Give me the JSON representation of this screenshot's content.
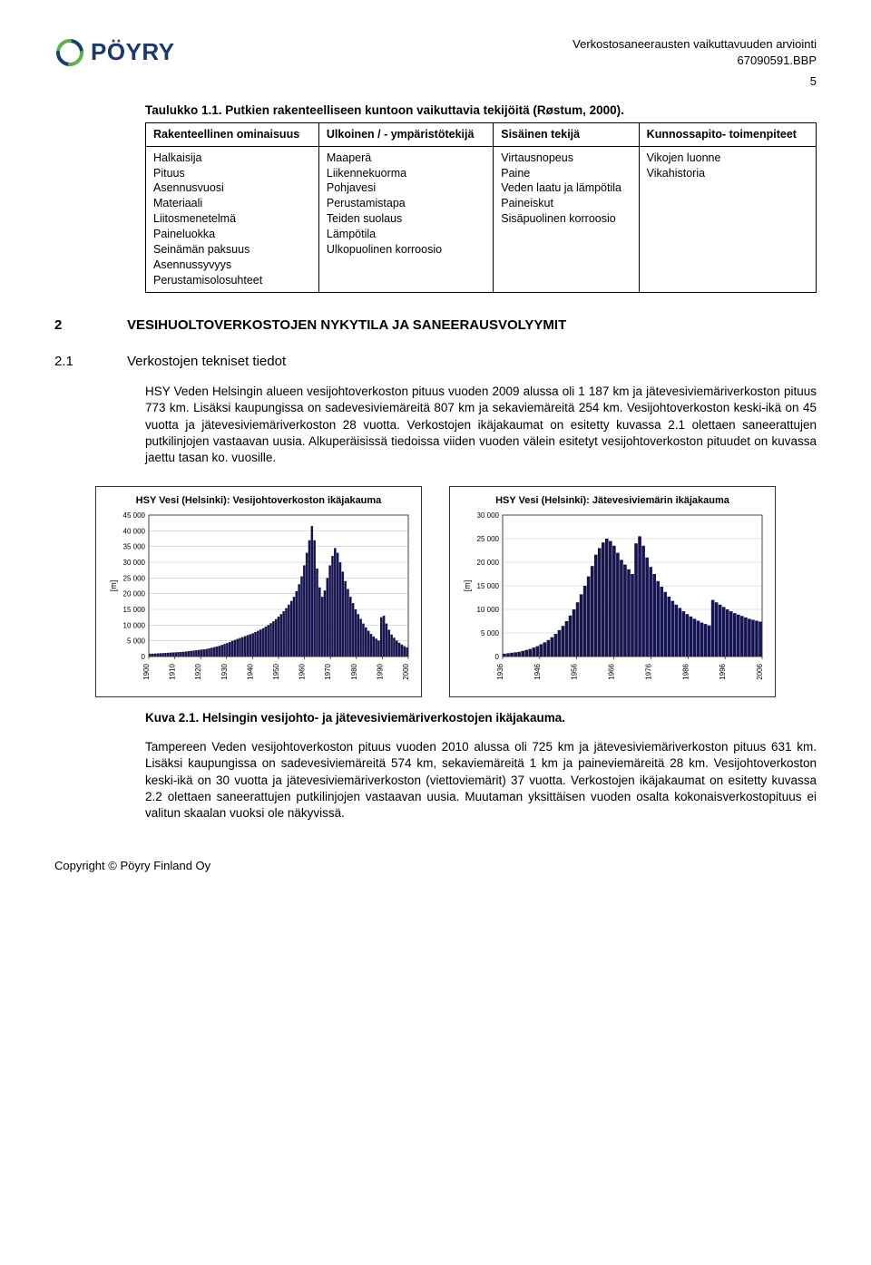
{
  "header": {
    "logo_text": "PÖYRY",
    "doc_title": "Verkostosaneerausten vaikuttavuuden arviointi",
    "doc_number": "67090591.BBP",
    "page_number": "5"
  },
  "table1": {
    "caption": "Taulukko 1.1. Putkien rakenteelliseen kuntoon vaikuttavia tekijöitä (Røstum, 2000).",
    "headers": [
      "Rakenteellinen ominaisuus",
      "Ulkoinen / - ympäristötekijä",
      "Sisäinen tekijä",
      "Kunnossapito- toimenpiteet"
    ],
    "cols": [
      [
        "Halkaisija",
        "Pituus",
        "Asennusvuosi",
        "Materiaali",
        "Liitosmenetelmä",
        "Paineluokka",
        "Seinämän paksuus",
        "Asennussyvyys",
        "Perustamisolosuhteet"
      ],
      [
        "Maaperä",
        "Liikennekuorma",
        "Pohjavesi",
        "Perustamistapa",
        "Teiden suolaus",
        "Lämpötila",
        "Ulkopuolinen korroosio"
      ],
      [
        "Virtausnopeus",
        "Paine",
        "Veden laatu ja lämpötila",
        "Paineiskut",
        "Sisäpuolinen korroosio"
      ],
      [
        "Vikojen luonne",
        "Vikahistoria"
      ]
    ]
  },
  "section2": {
    "num": "2",
    "title": "VESIHUOLTOVERKOSTOJEN NYKYTILA JA SANEERAUSVOLYYMIT"
  },
  "section21": {
    "num": "2.1",
    "title": "Verkostojen tekniset tiedot"
  },
  "para1": "HSY Veden Helsingin alueen vesijohtoverkoston pituus vuoden 2009 alussa oli 1 187 km ja jätevesiviemäriverkoston pituus 773 km. Lisäksi kaupungissa on sadevesiviemäreitä 807 km ja sekaviemäreitä 254 km. Vesijohtoverkoston keski-ikä on 45 vuotta ja jätevesiviemäriverkoston 28 vuotta. Verkostojen ikäjakaumat on esitetty kuvassa 2.1 olettaen saneerattujen putkilinjojen vastaavan uusia. Alkuperäisissä tiedoissa viiden vuoden välein esitetyt vesijohtoverkoston pituudet on kuvassa jaettu tasan ko. vuosille.",
  "chart_left": {
    "type": "bar",
    "title": "HSY Vesi (Helsinki): Vesijohtoverkoston ikäjakauma",
    "ylabel": "[m]",
    "ylim": [
      0,
      45000
    ],
    "ytick_step": 5000,
    "yticks": [
      "0",
      "5 000",
      "10 000",
      "15 000",
      "20 000",
      "25 000",
      "30 000",
      "35 000",
      "40 000",
      "45 000"
    ],
    "xticks": [
      "1900",
      "1910",
      "1920",
      "1930",
      "1940",
      "1950",
      "1960",
      "1970",
      "1980",
      "1990",
      "2000"
    ],
    "bar_color": "#17154f",
    "grid_color": "#c6c6c6",
    "background_color": "#ffffff",
    "border_color": "#333333",
    "values": [
      900,
      900,
      950,
      1000,
      1050,
      1100,
      1150,
      1200,
      1250,
      1300,
      1350,
      1400,
      1450,
      1500,
      1600,
      1700,
      1800,
      1900,
      2000,
      2100,
      2200,
      2300,
      2400,
      2600,
      2800,
      3000,
      3200,
      3400,
      3700,
      4000,
      4300,
      4600,
      5000,
      5300,
      5600,
      5900,
      6200,
      6500,
      6800,
      7100,
      7400,
      7800,
      8200,
      8600,
      9000,
      9500,
      10000,
      10600,
      11200,
      11900,
      12700,
      13500,
      14400,
      15400,
      16500,
      17700,
      19000,
      20800,
      23000,
      25500,
      29000,
      33000,
      37000,
      41500,
      37000,
      28000,
      22000,
      19000,
      21000,
      25000,
      29000,
      32000,
      34500,
      33000,
      30000,
      27000,
      24000,
      21500,
      19000,
      17000,
      15000,
      13500,
      12000,
      10500,
      9300,
      8200,
      7200,
      6400,
      5700,
      5100,
      12500,
      13000,
      10500,
      8500,
      7000,
      6000,
      5100,
      4400,
      3800,
      3300,
      2900
    ]
  },
  "chart_right": {
    "type": "bar",
    "title": "HSY Vesi (Helsinki): Jätevesiviemärin ikäjakauma",
    "ylabel": "[m]",
    "ylim": [
      0,
      30000
    ],
    "ytick_step": 5000,
    "yticks": [
      "0",
      "5 000",
      "10 000",
      "15 000",
      "20 000",
      "25 000",
      "30 000"
    ],
    "xticks": [
      "1936",
      "1946",
      "1956",
      "1966",
      "1976",
      "1986",
      "1996",
      "2006"
    ],
    "bar_color": "#17154f",
    "grid_color": "#c6c6c6",
    "background_color": "#ffffff",
    "border_color": "#333333",
    "values": [
      600,
      700,
      800,
      900,
      1000,
      1200,
      1400,
      1600,
      1900,
      2200,
      2600,
      3000,
      3500,
      4100,
      4800,
      5600,
      6500,
      7500,
      8700,
      10000,
      11500,
      13200,
      15000,
      17000,
      19200,
      21600,
      23000,
      24200,
      25000,
      24500,
      23500,
      22000,
      20500,
      19500,
      18500,
      17500,
      24000,
      25500,
      23500,
      21000,
      19000,
      17500,
      16000,
      14800,
      13700,
      12700,
      11800,
      11000,
      10300,
      9600,
      9000,
      8500,
      8000,
      7600,
      7200,
      6900,
      6600,
      12000,
      11500,
      11000,
      10500,
      10000,
      9600,
      9200,
      8900,
      8600,
      8300,
      8000,
      7800,
      7600,
      7400
    ]
  },
  "fig21_caption": "Kuva 2.1. Helsingin vesijohto- ja jätevesiviemäriverkostojen ikäjakauma.",
  "para2": "Tampereen Veden vesijohtoverkoston pituus vuoden 2010 alussa oli 725 km ja jätevesiviemäriverkoston pituus 631 km. Lisäksi kaupungissa on sadevesiviemäreitä 574 km, sekaviemäreitä 1 km ja paineviemäreitä 28 km. Vesijohtoverkoston keski-ikä on 30 vuotta ja jätevesiviemäriverkoston (viettoviemärit) 37 vuotta. Verkostojen ikäjakaumat on esitetty kuvassa 2.2 olettaen saneerattujen putkilinjojen vastaavan uusia. Muutaman yksittäisen vuoden osalta kokonaisverkostopituus ei valitun skaalan vuoksi ole näkyvissä.",
  "footer": "Copyright © Pöyry Finland Oy"
}
